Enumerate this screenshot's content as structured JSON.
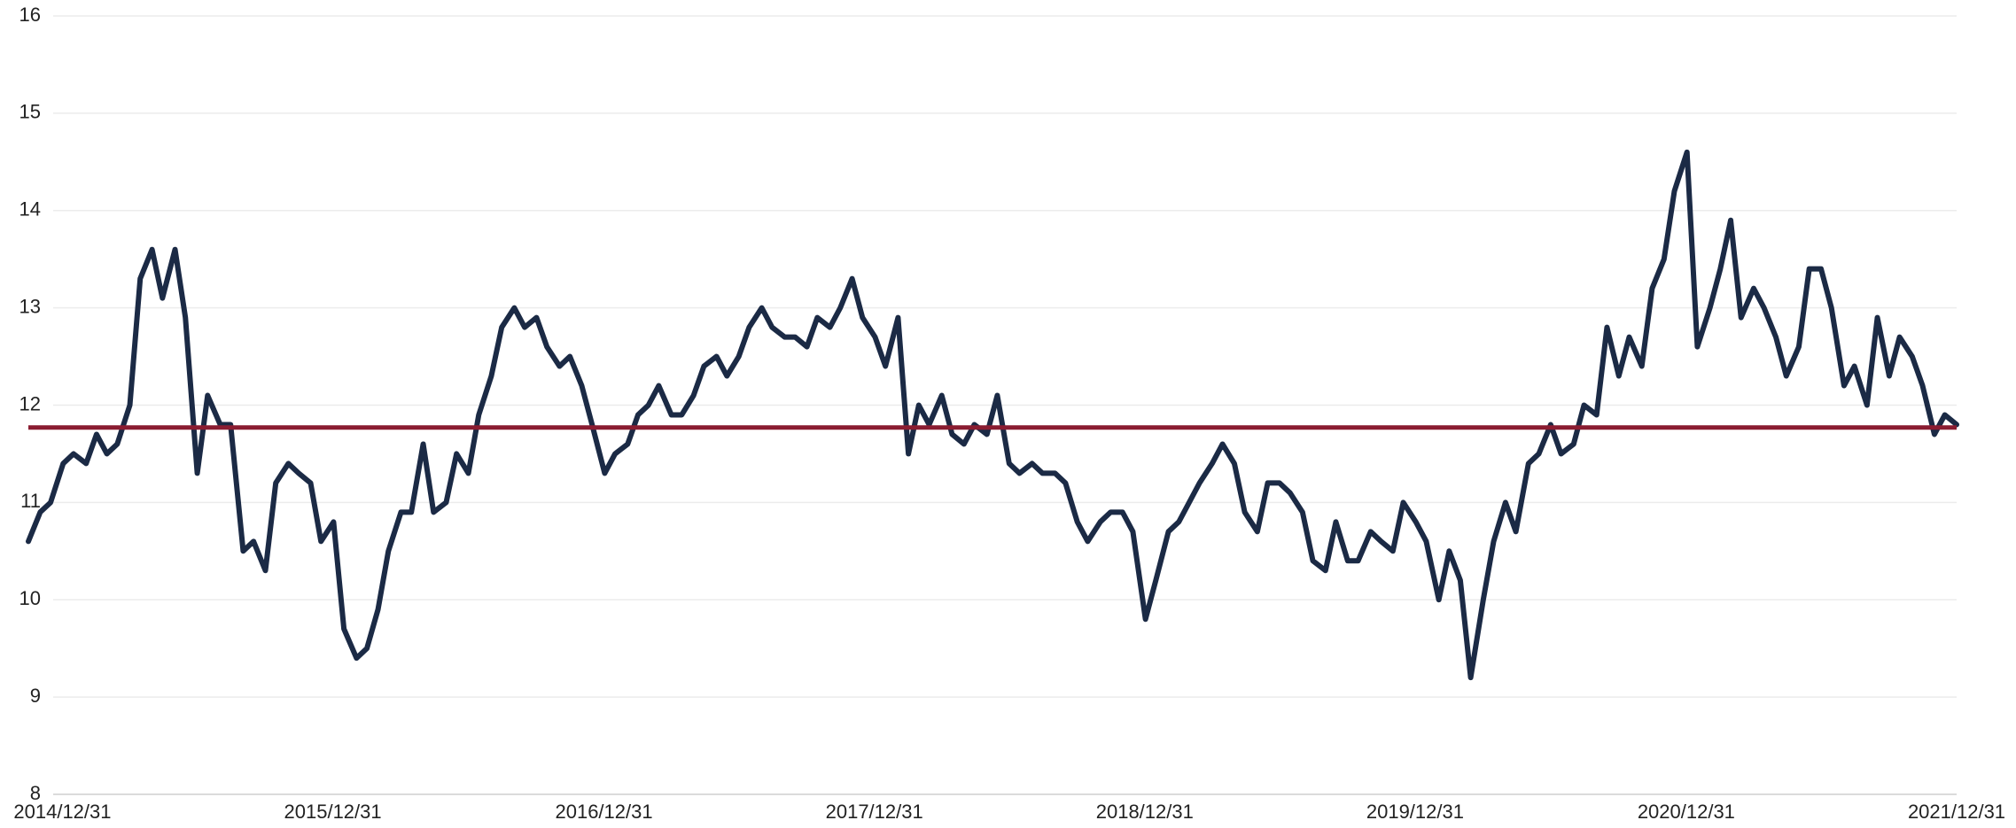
{
  "chart_data": {
    "type": "line",
    "x": [
      "2014/11/15",
      "2014/12/01",
      "2014/12/15",
      "2015/01/01",
      "2015/01/15",
      "2015/02/01",
      "2015/02/15",
      "2015/03/01",
      "2015/03/15",
      "2015/04/01",
      "2015/04/15",
      "2015/05/01",
      "2015/05/15",
      "2015/06/01",
      "2015/06/15",
      "2015/07/01",
      "2015/07/15",
      "2015/08/01",
      "2015/08/15",
      "2015/09/01",
      "2015/09/15",
      "2015/10/01",
      "2015/10/15",
      "2015/11/01",
      "2015/11/15",
      "2015/12/01",
      "2015/12/15",
      "2016/01/01",
      "2016/01/15",
      "2016/02/01",
      "2016/02/15",
      "2016/03/01",
      "2016/03/15",
      "2016/04/01",
      "2016/04/15",
      "2016/05/01",
      "2016/05/15",
      "2016/06/01",
      "2016/06/15",
      "2016/07/01",
      "2016/07/15",
      "2016/08/01",
      "2016/08/15",
      "2016/09/01",
      "2016/09/15",
      "2016/10/01",
      "2016/10/15",
      "2016/11/01",
      "2016/11/15",
      "2016/12/01",
      "2016/12/15",
      "2017/01/01",
      "2017/01/15",
      "2017/02/01",
      "2017/02/15",
      "2017/03/01",
      "2017/03/15",
      "2017/04/01",
      "2017/04/15",
      "2017/05/01",
      "2017/05/15",
      "2017/06/01",
      "2017/06/15",
      "2017/07/01",
      "2017/07/15",
      "2017/08/01",
      "2017/08/15",
      "2017/09/01",
      "2017/09/15",
      "2017/10/01",
      "2017/10/15",
      "2017/11/01",
      "2017/11/15",
      "2017/12/01",
      "2017/12/15",
      "2018/01/01",
      "2018/01/15",
      "2018/02/01",
      "2018/02/15",
      "2018/03/01",
      "2018/03/15",
      "2018/04/01",
      "2018/04/15",
      "2018/05/01",
      "2018/05/15",
      "2018/06/01",
      "2018/06/15",
      "2018/07/01",
      "2018/07/15",
      "2018/08/01",
      "2018/08/15",
      "2018/09/01",
      "2018/09/15",
      "2018/10/01",
      "2018/10/15",
      "2018/11/01",
      "2018/11/15",
      "2018/12/01",
      "2018/12/15",
      "2019/01/01",
      "2019/01/15",
      "2019/02/01",
      "2019/02/15",
      "2019/03/01",
      "2019/03/15",
      "2019/04/01",
      "2019/04/15",
      "2019/05/01",
      "2019/05/15",
      "2019/06/01",
      "2019/06/15",
      "2019/07/01",
      "2019/07/15",
      "2019/08/01",
      "2019/08/15",
      "2019/09/01",
      "2019/09/15",
      "2019/10/01",
      "2019/10/15",
      "2019/11/01",
      "2019/11/15",
      "2019/12/01",
      "2019/12/15",
      "2020/01/01",
      "2020/01/15",
      "2020/02/01",
      "2020/02/15",
      "2020/03/01",
      "2020/03/15",
      "2020/04/01",
      "2020/04/15",
      "2020/05/01",
      "2020/05/15",
      "2020/06/01",
      "2020/06/15",
      "2020/07/01",
      "2020/07/15",
      "2020/08/01",
      "2020/08/15",
      "2020/09/01",
      "2020/09/15",
      "2020/10/01",
      "2020/10/15",
      "2020/11/01",
      "2020/11/15",
      "2020/12/01",
      "2020/12/15",
      "2021/01/01",
      "2021/01/15",
      "2021/02/01",
      "2021/02/15",
      "2021/03/01",
      "2021/03/15",
      "2021/04/01",
      "2021/04/15",
      "2021/05/01",
      "2021/05/15",
      "2021/06/01",
      "2021/06/15",
      "2021/07/01",
      "2021/07/15",
      "2021/08/01",
      "2021/08/15",
      "2021/09/01",
      "2021/09/15",
      "2021/10/01",
      "2021/10/15",
      "2021/11/01",
      "2021/11/15",
      "2021/12/01",
      "2021/12/15",
      "2021/12/31"
    ],
    "series": [
      {
        "color": "#1b2a45",
        "values": [
          10.6,
          10.9,
          11.0,
          11.4,
          11.5,
          11.4,
          11.7,
          11.5,
          11.6,
          12.0,
          13.3,
          13.6,
          13.1,
          13.6,
          12.9,
          11.3,
          12.1,
          11.8,
          11.8,
          10.5,
          10.6,
          10.3,
          11.2,
          11.4,
          11.3,
          11.2,
          10.6,
          10.8,
          9.7,
          9.4,
          9.5,
          9.9,
          10.5,
          10.9,
          10.9,
          11.6,
          10.9,
          11.0,
          11.5,
          11.3,
          11.9,
          12.3,
          12.8,
          13.0,
          12.8,
          12.9,
          12.6,
          12.4,
          12.5,
          12.2,
          11.8,
          11.3,
          11.5,
          11.6,
          11.9,
          12.0,
          12.2,
          11.9,
          11.9,
          12.1,
          12.4,
          12.5,
          12.3,
          12.5,
          12.8,
          13.0,
          12.8,
          12.7,
          12.7,
          12.6,
          12.9,
          12.8,
          13.0,
          13.3,
          12.9,
          12.7,
          12.4,
          12.9,
          11.5,
          12.0,
          11.8,
          12.1,
          11.7,
          11.6,
          11.8,
          11.7,
          12.1,
          11.4,
          11.3,
          11.4,
          11.3,
          11.3,
          11.2,
          10.8,
          10.6,
          10.8,
          10.9,
          10.9,
          10.7,
          9.8,
          10.2,
          10.7,
          10.8,
          11.0,
          11.2,
          11.4,
          11.6,
          11.4,
          10.9,
          10.7,
          11.2,
          11.2,
          11.1,
          10.9,
          10.4,
          10.3,
          10.8,
          10.4,
          10.4,
          10.7,
          10.6,
          10.5,
          11.0,
          10.8,
          10.6,
          10.0,
          10.5,
          10.2,
          9.2,
          10.0,
          10.6,
          11.0,
          10.7,
          11.4,
          11.5,
          11.8,
          11.5,
          11.6,
          12.0,
          11.9,
          12.8,
          12.3,
          12.7,
          12.4,
          13.2,
          13.5,
          14.2,
          14.6,
          12.6,
          13.0,
          13.4,
          13.9,
          12.9,
          13.2,
          13.0,
          12.7,
          12.3,
          12.6,
          13.4,
          13.4,
          13.0,
          12.2,
          12.4,
          12.0,
          12.9,
          12.3,
          12.7,
          12.5,
          12.2,
          11.7,
          11.9,
          11.8
        ]
      }
    ],
    "reference_line": {
      "value": 11.77,
      "color": "#8a1c31"
    },
    "xlim": [
      "2014/11/15",
      "2021/12/31"
    ],
    "xticks": [
      "2014/12/31",
      "2015/12/31",
      "2016/12/31",
      "2017/12/31",
      "2018/12/31",
      "2019/12/31",
      "2020/12/31",
      "2021/12/31"
    ],
    "ylim": [
      8,
      16
    ],
    "yticks": [
      8,
      9,
      10,
      11,
      12,
      13,
      14,
      15,
      16
    ],
    "grid": true
  }
}
